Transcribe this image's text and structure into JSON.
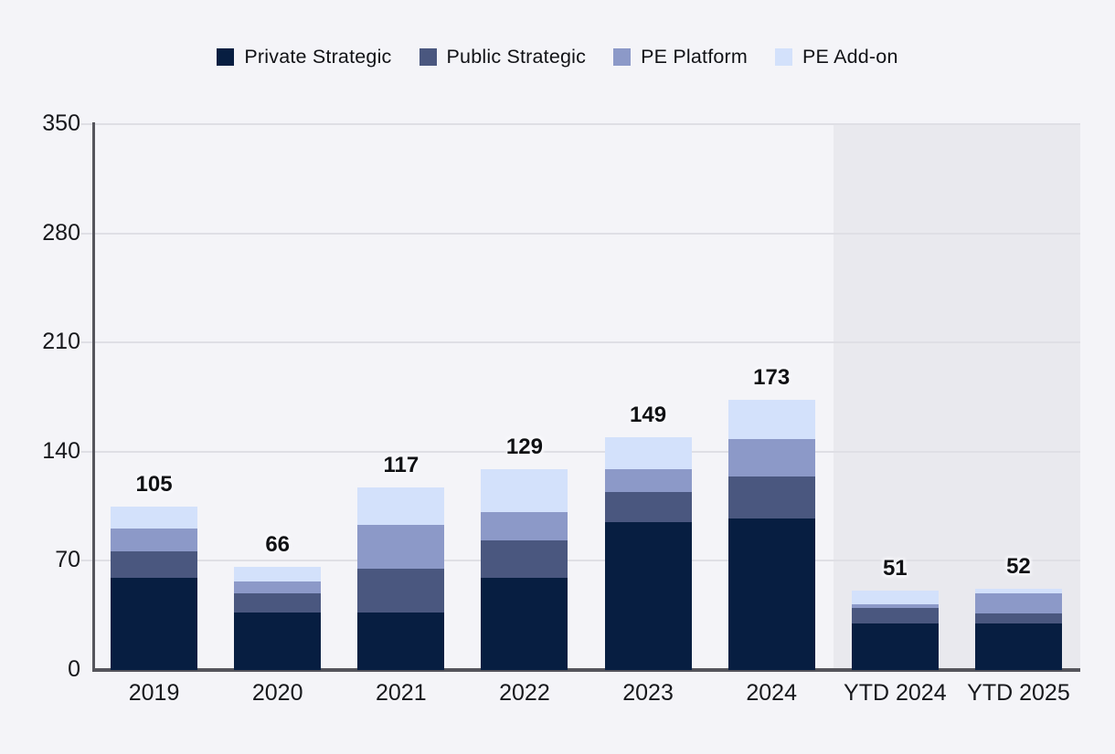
{
  "colors": {
    "background": "#f4f4f8",
    "highlight_panel": "#e9e9ee",
    "gridline": "#dfdfe5",
    "axis": "#55555c",
    "text": "#111216",
    "private_strategic": "#071e41",
    "public_strategic": "#4a577f",
    "pe_platform": "#8c99c8",
    "pe_addon": "#d3e1fb"
  },
  "chart_data": {
    "type": "bar",
    "stacked": true,
    "title": "",
    "xlabel": "",
    "ylabel": "",
    "ylim": [
      0,
      350
    ],
    "y_ticks": [
      0,
      70,
      140,
      210,
      280,
      350
    ],
    "grid": true,
    "legend_position": "top",
    "categories": [
      "2019",
      "2020",
      "2021",
      "2022",
      "2023",
      "2024",
      "YTD 2024",
      "YTD 2025"
    ],
    "series": [
      {
        "name": "Private Strategic",
        "color": "#071e41",
        "values": [
          59,
          37,
          37,
          59,
          95,
          97,
          30,
          30
        ]
      },
      {
        "name": "Public Strategic",
        "color": "#4a577f",
        "values": [
          17,
          12,
          28,
          24,
          19,
          27,
          10,
          6
        ]
      },
      {
        "name": "PE Platform",
        "color": "#8c99c8",
        "values": [
          15,
          8,
          28,
          18,
          15,
          24,
          2,
          13
        ]
      },
      {
        "name": "PE Add-on",
        "color": "#d3e1fb",
        "values": [
          14,
          9,
          24,
          28,
          20,
          25,
          9,
          3
        ]
      }
    ],
    "totals": [
      105,
      66,
      117,
      129,
      149,
      173,
      51,
      52
    ],
    "highlight_region": {
      "categories": [
        "YTD 2024",
        "YTD 2025"
      ],
      "note": "gray background panel behind YTD bars"
    }
  }
}
